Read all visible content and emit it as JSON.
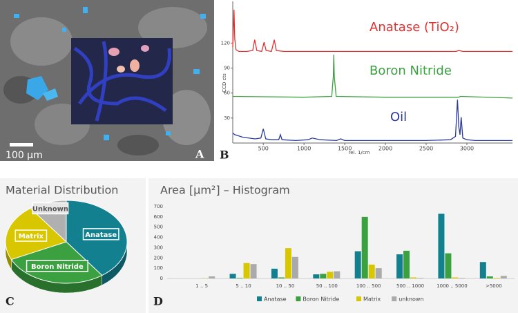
{
  "panel_a": {
    "scale_bar": "100 µm",
    "label": "A"
  },
  "chart_data": [
    {
      "type": "line",
      "label": "B",
      "ylabel": "CCD cts",
      "xlabel": "rel. 1/cm",
      "xlim": [
        125,
        3560
      ],
      "ylim": [
        0,
        170
      ],
      "xticks": [
        500,
        1000,
        1500,
        2000,
        2500,
        3000
      ],
      "yticks": [
        30,
        60,
        90,
        120
      ],
      "series": [
        {
          "name": "Anatase (TiO₂)",
          "color": "#e03030",
          "x": [
            125,
            140,
            150,
            165,
            200,
            300,
            370,
            395,
            420,
            480,
            510,
            535,
            600,
            635,
            660,
            750,
            1000,
            1500,
            2000,
            2500,
            2870,
            2900,
            2950,
            3000,
            3560
          ],
          "values": [
            115,
            160,
            125,
            112,
            110,
            110,
            111,
            124,
            111,
            110,
            121,
            111,
            110,
            124,
            111,
            110,
            110,
            110,
            110,
            110,
            110,
            111,
            110,
            110,
            110
          ]
        },
        {
          "name": "Boron Nitride",
          "color": "#3aa040",
          "x": [
            125,
            1000,
            1340,
            1360,
            1366,
            1372,
            1395,
            2000,
            2900,
            2920,
            3560
          ],
          "values": [
            56,
            55,
            56,
            80,
            106,
            80,
            56,
            55,
            55,
            56,
            54
          ]
        },
        {
          "name": "Oil",
          "color": "#2a3a9a",
          "x": [
            125,
            150,
            250,
            400,
            470,
            500,
            530,
            600,
            690,
            710,
            730,
            900,
            1050,
            1100,
            1200,
            1400,
            1450,
            1500,
            1800,
            2500,
            2800,
            2860,
            2885,
            2900,
            2915,
            2930,
            2950,
            3000,
            3100,
            3560
          ],
          "values": [
            12,
            10,
            7,
            5,
            6,
            17,
            5,
            4,
            4,
            10,
            4,
            3,
            4,
            6,
            4,
            3,
            5,
            3,
            3,
            3,
            4,
            8,
            52,
            20,
            10,
            31,
            6,
            4,
            3,
            3
          ]
        }
      ]
    },
    {
      "type": "pie",
      "title": "Material Distribution",
      "label": "C",
      "categories": [
        "Anatase",
        "Boron Nitride",
        "Matrix",
        "Unknown"
      ],
      "values": [
        40,
        28,
        22,
        10
      ],
      "colors": [
        "#13808f",
        "#3aa040",
        "#d8c600",
        "#b0b0b0"
      ]
    },
    {
      "type": "bar",
      "title": "Area [µm²] – Histogram",
      "label": "D",
      "categories": [
        "1 .. 5",
        "5 .. 10",
        "10 .. 50",
        "50 .. 100",
        "100 .. 500",
        "500 .. 1000",
        "1000 .. 5000",
        ">5000"
      ],
      "ylim": [
        0,
        700
      ],
      "yticks": [
        0,
        100,
        200,
        300,
        400,
        500,
        600,
        700
      ],
      "grid": false,
      "series": [
        {
          "name": "Anatase",
          "color": "#13808f",
          "values": [
            0,
            45,
            95,
            40,
            265,
            235,
            630,
            160
          ]
        },
        {
          "name": "Boron Nitride",
          "color": "#3aa040",
          "values": [
            0,
            5,
            10,
            45,
            600,
            270,
            245,
            20
          ]
        },
        {
          "name": "Matrix",
          "color": "#d8c600",
          "values": [
            2,
            150,
            295,
            65,
            135,
            10,
            10,
            5
          ]
        },
        {
          "name": "unknown",
          "color": "#aaaaaa",
          "values": [
            20,
            140,
            210,
            70,
            100,
            5,
            5,
            25
          ]
        }
      ]
    }
  ]
}
